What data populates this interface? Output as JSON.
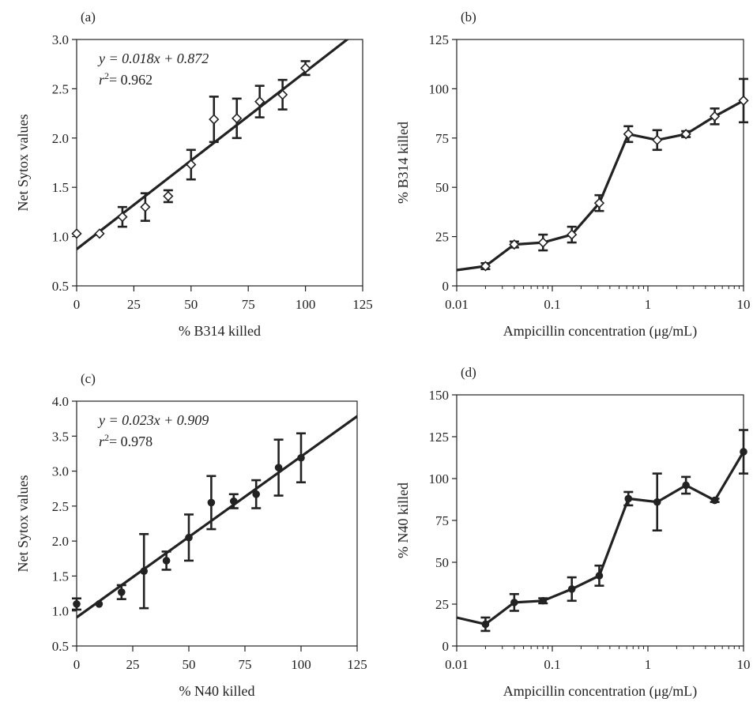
{
  "chart_data": [
    {
      "id": "a",
      "type": "scatter",
      "panel_label": "(a)",
      "xlabel": "% B314 killed",
      "ylabel": "Net Sytox values",
      "xscale": "linear",
      "xlim": [
        0,
        125
      ],
      "ylim": [
        0.5,
        3.0
      ],
      "xticks": [
        0,
        25,
        50,
        75,
        100,
        125
      ],
      "yticks": [
        0.5,
        1.0,
        1.5,
        2.0,
        2.5,
        3.0
      ],
      "xtick_labels": [
        "0",
        "25",
        "50",
        "75",
        "100",
        "125"
      ],
      "ytick_labels": [
        "0.5",
        "1.0",
        "1.5",
        "2.0",
        "2.5",
        "3.0"
      ],
      "marker": "open-diamond",
      "fit": {
        "slope": 0.018,
        "intercept": 0.872
      },
      "equation_lines": [
        "y = 0.018x + 0.872",
        "r2= 0.962"
      ],
      "points": [
        {
          "x": 0,
          "y": 1.03,
          "err": 0
        },
        {
          "x": 10,
          "y": 1.03,
          "err": 0
        },
        {
          "x": 20,
          "y": 1.2,
          "err": 0.1
        },
        {
          "x": 30,
          "y": 1.3,
          "err": 0.14
        },
        {
          "x": 40,
          "y": 1.41,
          "err": 0.06
        },
        {
          "x": 50,
          "y": 1.73,
          "err": 0.15
        },
        {
          "x": 60,
          "y": 2.19,
          "err": 0.23
        },
        {
          "x": 70,
          "y": 2.2,
          "err": 0.2
        },
        {
          "x": 80,
          "y": 2.37,
          "err": 0.16
        },
        {
          "x": 90,
          "y": 2.44,
          "err": 0.15
        },
        {
          "x": 100,
          "y": 2.71,
          "err": 0.07
        }
      ]
    },
    {
      "id": "b",
      "type": "line",
      "panel_label": "(b)",
      "xlabel": "Ampicillin concentration (μg/mL)",
      "ylabel": "% B314 killed",
      "xscale": "log",
      "xlim": [
        0.01,
        10
      ],
      "ylim": [
        0,
        125
      ],
      "xticks": [
        0.01,
        0.1,
        1,
        10
      ],
      "yticks": [
        0,
        25,
        50,
        75,
        100,
        125
      ],
      "xtick_labels": [
        "0.01",
        "0.1",
        "1",
        "10"
      ],
      "ytick_labels": [
        "0",
        "25",
        "50",
        "75",
        "100",
        "125"
      ],
      "marker": "open-diamond",
      "line_start": {
        "x": 0.01,
        "y": 8
      },
      "points": [
        {
          "x": 0.02,
          "y": 10,
          "err": 1.5
        },
        {
          "x": 0.04,
          "y": 21,
          "err": 1.5
        },
        {
          "x": 0.08,
          "y": 22,
          "err": 4
        },
        {
          "x": 0.16,
          "y": 26,
          "err": 4
        },
        {
          "x": 0.31,
          "y": 42,
          "err": 4
        },
        {
          "x": 0.625,
          "y": 77,
          "err": 4
        },
        {
          "x": 1.25,
          "y": 74,
          "err": 5
        },
        {
          "x": 2.5,
          "y": 77,
          "err": 1.5
        },
        {
          "x": 5,
          "y": 86,
          "err": 4
        },
        {
          "x": 10,
          "y": 94,
          "err": 11
        }
      ]
    },
    {
      "id": "c",
      "type": "scatter",
      "panel_label": "(c)",
      "xlabel": "% N40 killed",
      "ylabel": "Net Sytox values",
      "xscale": "linear",
      "xlim": [
        0,
        125
      ],
      "ylim": [
        0.5,
        4.0
      ],
      "xticks": [
        0,
        25,
        50,
        75,
        100,
        125
      ],
      "yticks": [
        0.5,
        1.0,
        1.5,
        2.0,
        2.5,
        3.0,
        3.5,
        4.0
      ],
      "xtick_labels": [
        "0",
        "25",
        "50",
        "75",
        "100",
        "125"
      ],
      "ytick_labels": [
        "0.5",
        "1.0",
        "1.5",
        "2.0",
        "2.5",
        "3.0",
        "3.5",
        "4.0"
      ],
      "marker": "filled-circle",
      "fit": {
        "slope": 0.023,
        "intercept": 0.909
      },
      "equation_lines": [
        "y = 0.023x + 0.909",
        "r2= 0.978"
      ],
      "points": [
        {
          "x": 0,
          "y": 1.1,
          "err": 0.08
        },
        {
          "x": 10,
          "y": 1.1,
          "err": 0
        },
        {
          "x": 20,
          "y": 1.27,
          "err": 0.1
        },
        {
          "x": 30,
          "y": 1.57,
          "err": 0.53
        },
        {
          "x": 40,
          "y": 1.72,
          "err": 0.13
        },
        {
          "x": 50,
          "y": 2.05,
          "err": 0.33
        },
        {
          "x": 60,
          "y": 2.55,
          "err": 0.38
        },
        {
          "x": 70,
          "y": 2.57,
          "err": 0.1
        },
        {
          "x": 80,
          "y": 2.67,
          "err": 0.2
        },
        {
          "x": 90,
          "y": 3.05,
          "err": 0.4
        },
        {
          "x": 100,
          "y": 3.19,
          "err": 0.35
        }
      ]
    },
    {
      "id": "d",
      "type": "line",
      "panel_label": "(d)",
      "xlabel": "Ampicillin concentration (μg/mL)",
      "ylabel": "% N40 killed",
      "xscale": "log",
      "xlim": [
        0.01,
        10
      ],
      "ylim": [
        0,
        150
      ],
      "xticks": [
        0.01,
        0.1,
        1,
        10
      ],
      "yticks": [
        0,
        25,
        50,
        75,
        100,
        125,
        150
      ],
      "xtick_labels": [
        "0.01",
        "0.1",
        "1",
        "10"
      ],
      "ytick_labels": [
        "0",
        "25",
        "50",
        "75",
        "100",
        "125",
        "150"
      ],
      "marker": "filled-circle",
      "line_start": {
        "x": 0.01,
        "y": 17
      },
      "points": [
        {
          "x": 0.02,
          "y": 13,
          "err": 4
        },
        {
          "x": 0.04,
          "y": 26,
          "err": 5
        },
        {
          "x": 0.08,
          "y": 27,
          "err": 1.5
        },
        {
          "x": 0.16,
          "y": 34,
          "err": 7
        },
        {
          "x": 0.31,
          "y": 42,
          "err": 6
        },
        {
          "x": 0.625,
          "y": 88,
          "err": 4
        },
        {
          "x": 1.25,
          "y": 86,
          "err": 17
        },
        {
          "x": 2.5,
          "y": 96,
          "err": 5
        },
        {
          "x": 5,
          "y": 87,
          "err": 1
        },
        {
          "x": 10,
          "y": 116,
          "err": 13
        }
      ]
    }
  ]
}
